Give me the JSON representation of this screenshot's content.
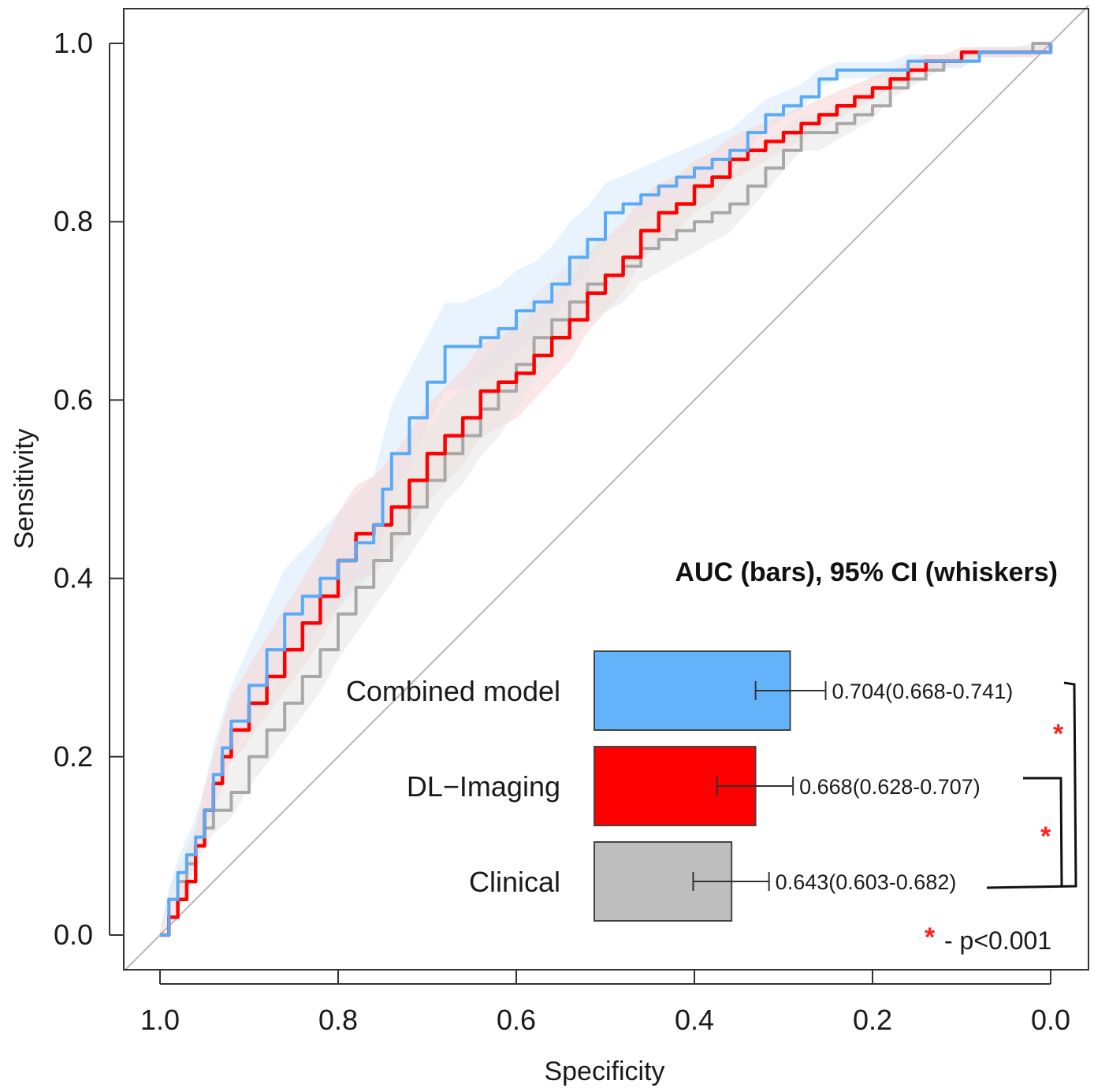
{
  "chart_data": {
    "type": "line",
    "xlabel": "Specificity",
    "ylabel": "Sensitivity",
    "xlim": [
      1.0,
      0.0
    ],
    "ylim": [
      0.0,
      1.0
    ],
    "x_ticks": [
      "1.0",
      "0.8",
      "0.6",
      "0.4",
      "0.2",
      "0.0"
    ],
    "y_ticks": [
      "0.0",
      "0.2",
      "0.4",
      "0.6",
      "0.8",
      "1.0"
    ],
    "grid": false,
    "reference_line": {
      "from": [
        1.0,
        0.0
      ],
      "to": [
        0.0,
        1.0
      ],
      "color": "#b8b8b8"
    },
    "series": [
      {
        "name": "Combined model",
        "color": "#5aaaf5",
        "band_color": "#d6e9fb",
        "x": [
          1.0,
          0.99,
          0.98,
          0.97,
          0.96,
          0.95,
          0.94,
          0.93,
          0.92,
          0.9,
          0.88,
          0.86,
          0.84,
          0.82,
          0.8,
          0.78,
          0.76,
          0.75,
          0.74,
          0.72,
          0.7,
          0.68,
          0.66,
          0.64,
          0.62,
          0.6,
          0.58,
          0.56,
          0.54,
          0.52,
          0.5,
          0.48,
          0.46,
          0.44,
          0.42,
          0.4,
          0.38,
          0.36,
          0.34,
          0.32,
          0.3,
          0.28,
          0.26,
          0.24,
          0.22,
          0.2,
          0.18,
          0.16,
          0.14,
          0.12,
          0.1,
          0.08,
          0.06,
          0.04,
          0.02,
          0.0
        ],
        "y": [
          0.0,
          0.04,
          0.07,
          0.09,
          0.11,
          0.14,
          0.18,
          0.21,
          0.24,
          0.28,
          0.32,
          0.36,
          0.38,
          0.4,
          0.42,
          0.44,
          0.46,
          0.5,
          0.54,
          0.58,
          0.62,
          0.66,
          0.66,
          0.67,
          0.68,
          0.7,
          0.71,
          0.73,
          0.76,
          0.78,
          0.81,
          0.82,
          0.83,
          0.84,
          0.85,
          0.86,
          0.87,
          0.88,
          0.9,
          0.92,
          0.93,
          0.94,
          0.96,
          0.97,
          0.97,
          0.97,
          0.97,
          0.98,
          0.98,
          0.98,
          0.98,
          0.99,
          0.99,
          0.99,
          0.99,
          1.0
        ]
      },
      {
        "name": "DL−Imaging",
        "color": "#ff0000",
        "band_color": "#f8d4d4",
        "x": [
          1.0,
          0.99,
          0.98,
          0.97,
          0.96,
          0.95,
          0.94,
          0.93,
          0.92,
          0.9,
          0.88,
          0.86,
          0.84,
          0.82,
          0.8,
          0.78,
          0.76,
          0.74,
          0.72,
          0.7,
          0.68,
          0.66,
          0.64,
          0.62,
          0.6,
          0.58,
          0.56,
          0.54,
          0.52,
          0.5,
          0.48,
          0.46,
          0.44,
          0.42,
          0.4,
          0.38,
          0.36,
          0.34,
          0.32,
          0.3,
          0.28,
          0.26,
          0.24,
          0.22,
          0.2,
          0.18,
          0.16,
          0.14,
          0.12,
          0.1,
          0.08,
          0.06,
          0.04,
          0.02,
          0.0
        ],
        "y": [
          0.0,
          0.02,
          0.04,
          0.06,
          0.1,
          0.14,
          0.17,
          0.2,
          0.23,
          0.26,
          0.29,
          0.32,
          0.35,
          0.38,
          0.42,
          0.45,
          0.46,
          0.48,
          0.51,
          0.54,
          0.56,
          0.58,
          0.61,
          0.62,
          0.63,
          0.65,
          0.67,
          0.69,
          0.72,
          0.74,
          0.76,
          0.79,
          0.81,
          0.82,
          0.84,
          0.85,
          0.87,
          0.88,
          0.89,
          0.9,
          0.91,
          0.92,
          0.93,
          0.94,
          0.95,
          0.96,
          0.97,
          0.98,
          0.98,
          0.99,
          0.99,
          0.99,
          0.99,
          0.99,
          1.0
        ]
      },
      {
        "name": "Clinical",
        "color": "#a8a8a8",
        "band_color": "#e6e6e6",
        "x": [
          1.0,
          0.99,
          0.98,
          0.97,
          0.96,
          0.95,
          0.94,
          0.92,
          0.9,
          0.88,
          0.86,
          0.84,
          0.82,
          0.8,
          0.78,
          0.76,
          0.74,
          0.72,
          0.7,
          0.68,
          0.66,
          0.64,
          0.62,
          0.6,
          0.58,
          0.56,
          0.54,
          0.52,
          0.5,
          0.48,
          0.46,
          0.44,
          0.42,
          0.4,
          0.38,
          0.36,
          0.34,
          0.32,
          0.3,
          0.28,
          0.26,
          0.24,
          0.22,
          0.2,
          0.18,
          0.16,
          0.14,
          0.12,
          0.1,
          0.08,
          0.06,
          0.04,
          0.02,
          0.0
        ],
        "y": [
          0.0,
          0.04,
          0.06,
          0.08,
          0.1,
          0.12,
          0.14,
          0.16,
          0.2,
          0.23,
          0.26,
          0.29,
          0.32,
          0.36,
          0.39,
          0.42,
          0.45,
          0.48,
          0.51,
          0.54,
          0.56,
          0.59,
          0.61,
          0.64,
          0.67,
          0.69,
          0.71,
          0.73,
          0.74,
          0.75,
          0.77,
          0.78,
          0.79,
          0.8,
          0.81,
          0.82,
          0.84,
          0.86,
          0.88,
          0.9,
          0.9,
          0.91,
          0.92,
          0.93,
          0.95,
          0.96,
          0.97,
          0.98,
          0.98,
          0.99,
          0.99,
          0.99,
          1.0,
          1.0
        ]
      }
    ],
    "inset": {
      "title": "AUC (bars), 95% CI (whiskers)",
      "bars": [
        {
          "name": "Combined model",
          "auc": 0.704,
          "ci": [
            0.668,
            0.741
          ],
          "label": "0.704(0.668-0.741)",
          "color": "#63b3fb"
        },
        {
          "name": "DL−Imaging",
          "auc": 0.668,
          "ci": [
            0.628,
            0.707
          ],
          "label": "0.668(0.628-0.707)",
          "color": "#ff0000"
        },
        {
          "name": "Clinical",
          "auc": 0.643,
          "ci": [
            0.603,
            0.682
          ],
          "label": "0.643(0.603-0.682)",
          "color": "#bebebe"
        }
      ],
      "significance_mark": "*",
      "note": "- p<0.001"
    }
  }
}
